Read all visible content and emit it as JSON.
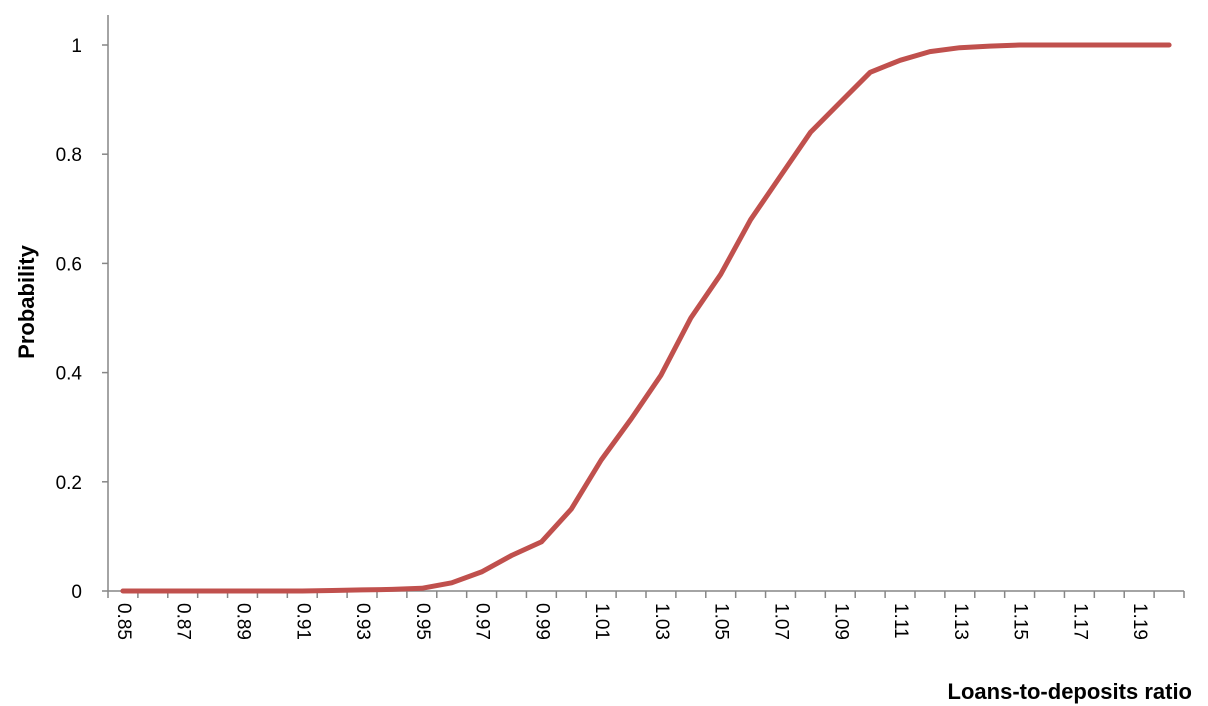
{
  "chart_data": {
    "type": "line",
    "title": "",
    "xlabel": "Loans-to-deposits ratio",
    "ylabel": "Probability",
    "xlim": [
      0.85,
      1.2
    ],
    "ylim": [
      0,
      1
    ],
    "y_ticks": [
      "0",
      "0.2",
      "0.4",
      "0.6",
      "0.8",
      "1"
    ],
    "x_tick_labels": [
      "0.85",
      "0.87",
      "0.89",
      "0.91",
      "0.93",
      "0.95",
      "0.97",
      "0.99",
      "1.01",
      "1.03",
      "1.05",
      "1.07",
      "1.09",
      "1.11",
      "1.13",
      "1.15",
      "1.17",
      "1.19"
    ],
    "grid": false,
    "legend": "none",
    "line_color": "#C0504D",
    "series": [
      {
        "x": [
          0.85,
          0.86,
          0.87,
          0.88,
          0.89,
          0.9,
          0.91,
          0.92,
          0.93,
          0.94,
          0.95,
          0.96,
          0.97,
          0.98,
          0.99,
          1.0,
          1.01,
          1.02,
          1.03,
          1.04,
          1.05,
          1.06,
          1.07,
          1.08,
          1.09,
          1.1,
          1.11,
          1.12,
          1.13,
          1.14,
          1.15,
          1.16,
          1.17,
          1.18,
          1.19,
          1.2
        ],
        "values": [
          0.0,
          0.0,
          0.0,
          0.0,
          0.0,
          0.0,
          0.0,
          0.001,
          0.002,
          0.003,
          0.005,
          0.015,
          0.035,
          0.065,
          0.09,
          0.15,
          0.24,
          0.315,
          0.395,
          0.5,
          0.58,
          0.68,
          0.76,
          0.84,
          0.895,
          0.95,
          0.972,
          0.988,
          0.995,
          0.998,
          1.0,
          1.0,
          1.0,
          1.0,
          1.0,
          1.0
        ]
      }
    ]
  }
}
